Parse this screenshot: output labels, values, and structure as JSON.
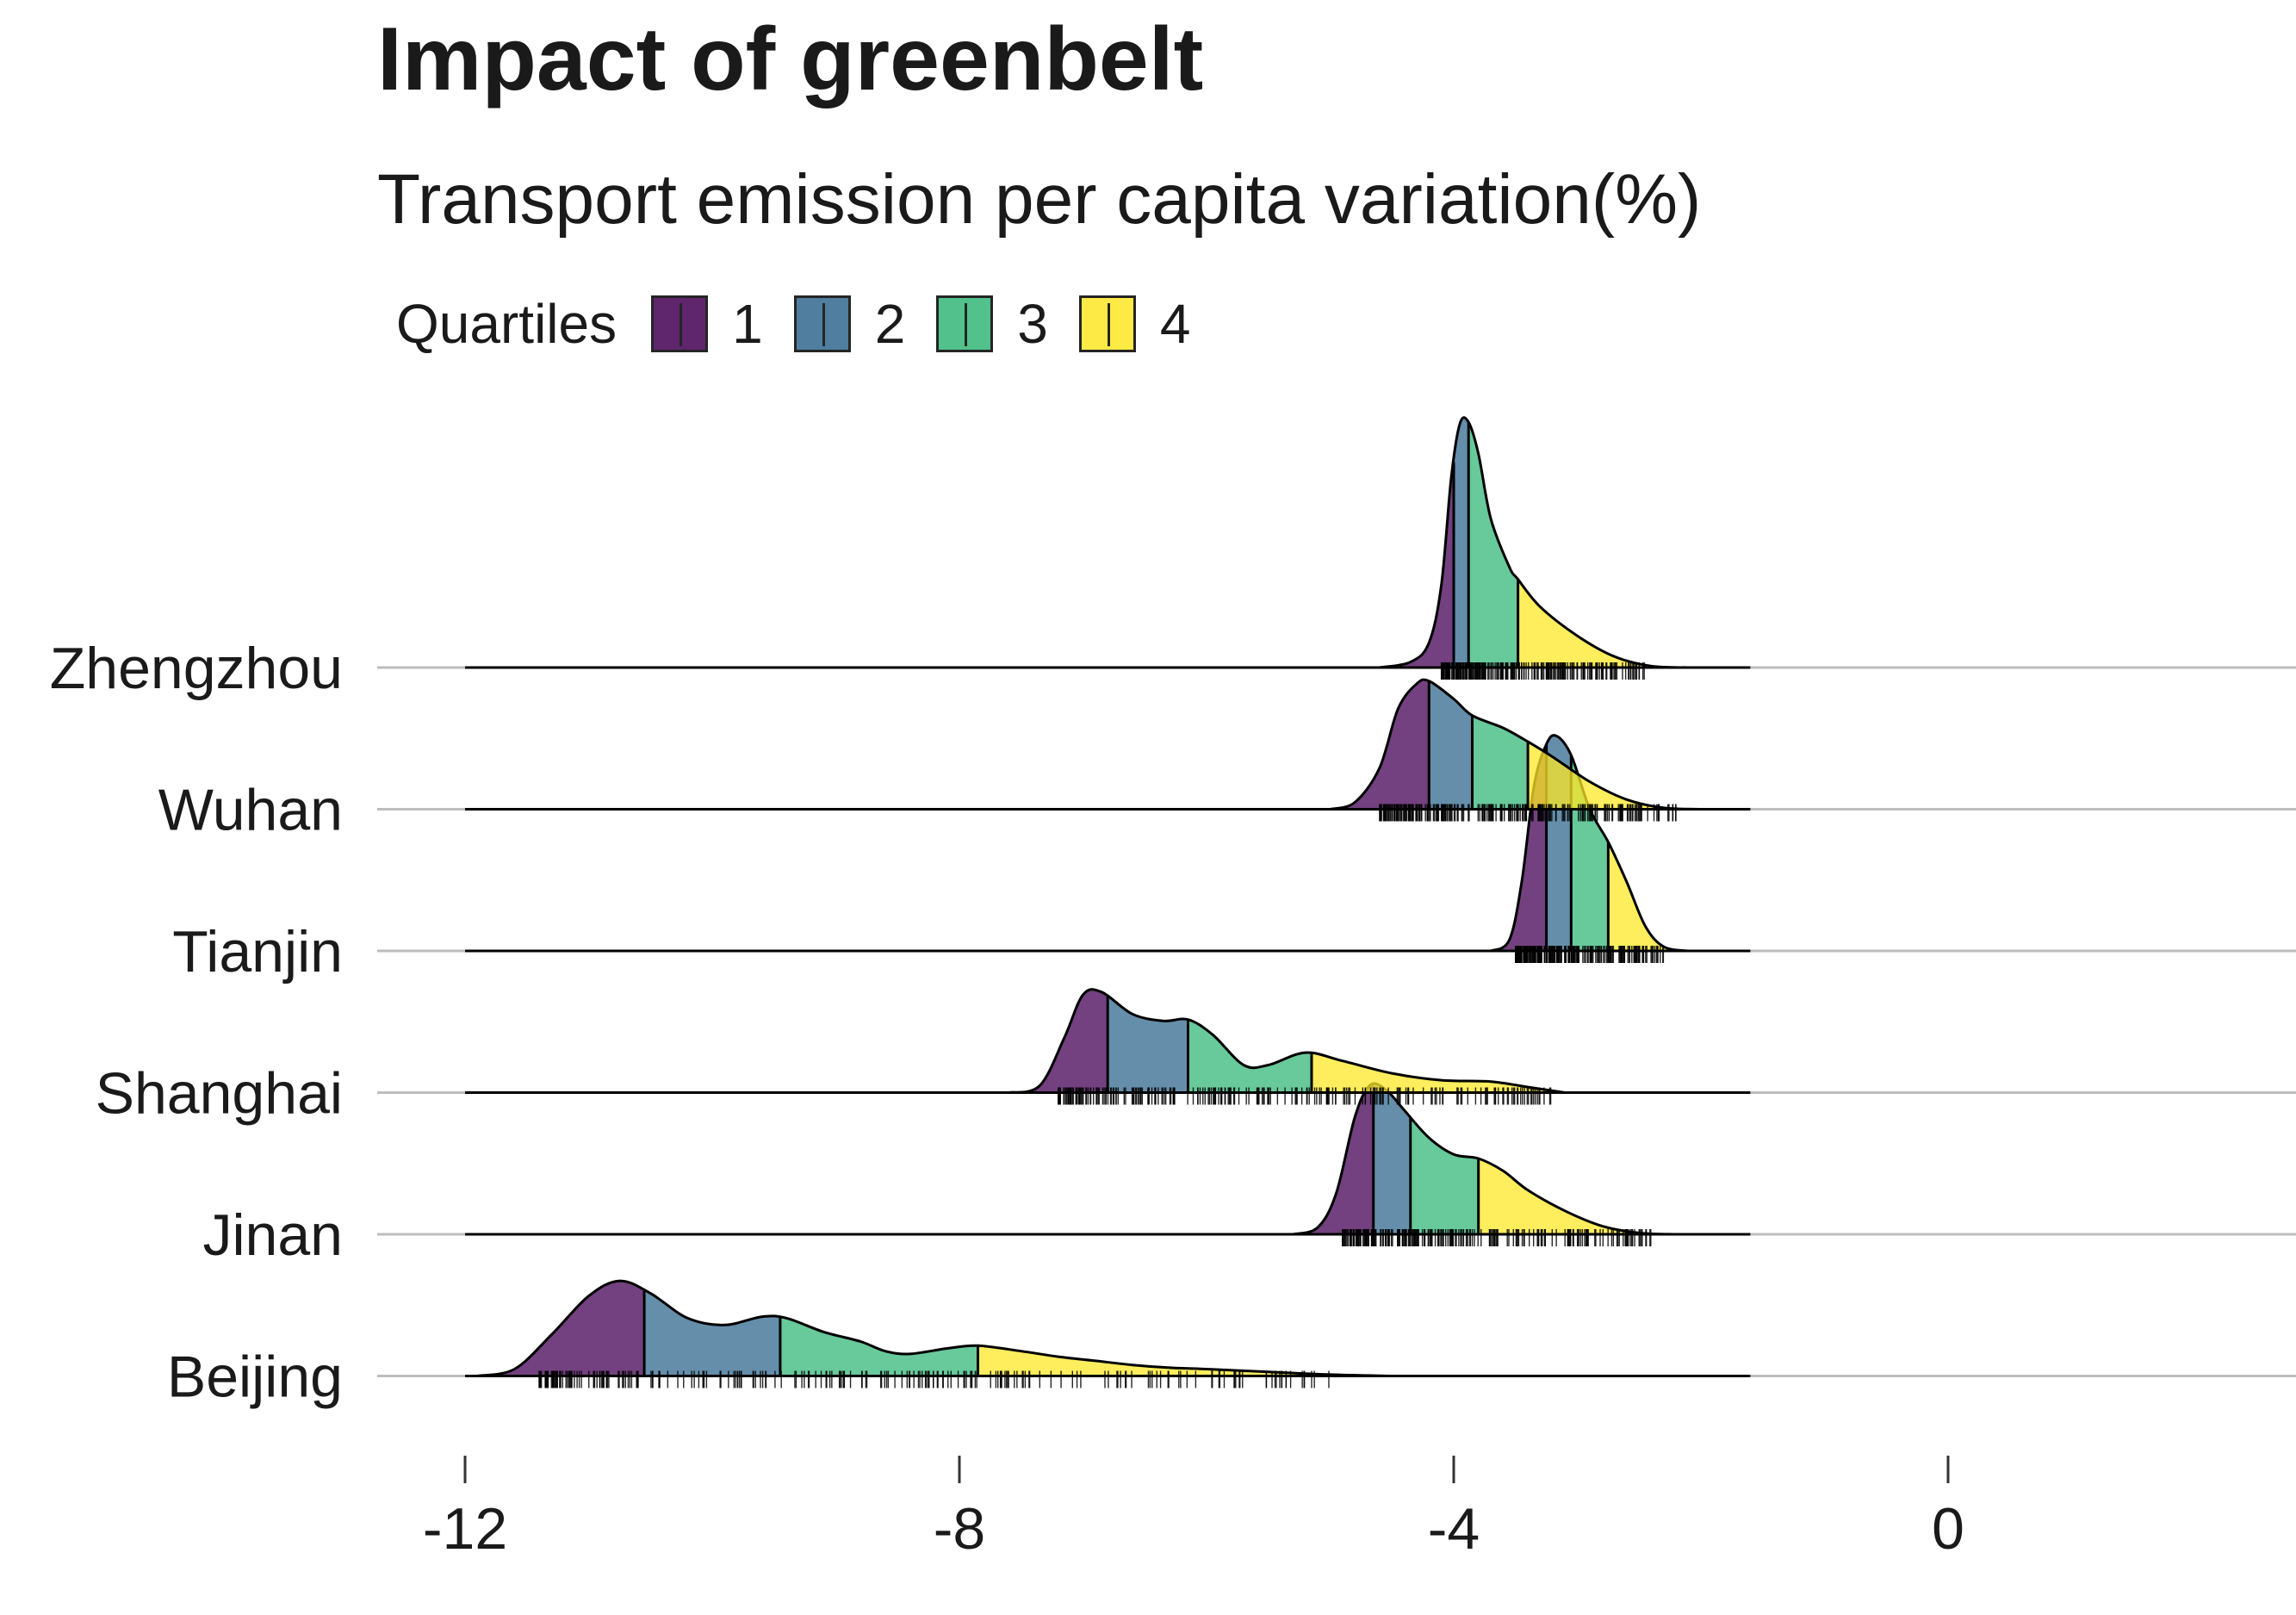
{
  "chart_data": {
    "type": "ridgeline",
    "title": "Impact of greenbelt",
    "subtitle": "Transport emission per capita variation(%)",
    "xlabel": "",
    "ylabel": "",
    "xlim": [
      -12.7,
      2.7
    ],
    "x_ticks": [
      -12,
      -8,
      -4,
      0
    ],
    "x_tick_labels": [
      "-12",
      "-8",
      "-4",
      "0"
    ],
    "legend": {
      "title": "Quartiles",
      "position": "top-left",
      "entries": [
        {
          "label": "1",
          "color": "#440154"
        },
        {
          "label": "2",
          "color": "#31688E"
        },
        {
          "label": "3",
          "color": "#35B779"
        },
        {
          "label": "4",
          "color": "#FDE725"
        }
      ]
    },
    "fill_alpha": 0.75,
    "grid": "horizontal baselines only",
    "density_support": [
      -12.0,
      -1.6
    ],
    "series": [
      {
        "name": "Beijing",
        "quartiles": [
          -10.55,
          -9.45,
          -7.85
        ],
        "range": [
          -11.4,
          -5.0
        ],
        "density": [
          [
            -11.9,
            0.0
          ],
          [
            -11.6,
            0.05
          ],
          [
            -11.3,
            0.3
          ],
          [
            -11.0,
            0.58
          ],
          [
            -10.75,
            0.69
          ],
          [
            -10.5,
            0.6
          ],
          [
            -10.2,
            0.42
          ],
          [
            -9.9,
            0.37
          ],
          [
            -9.6,
            0.43
          ],
          [
            -9.4,
            0.42
          ],
          [
            -9.1,
            0.32
          ],
          [
            -8.8,
            0.25
          ],
          [
            -8.6,
            0.18
          ],
          [
            -8.4,
            0.16
          ],
          [
            -8.1,
            0.2
          ],
          [
            -7.85,
            0.22
          ],
          [
            -7.5,
            0.18
          ],
          [
            -7.2,
            0.14
          ],
          [
            -6.9,
            0.11
          ],
          [
            -6.6,
            0.08
          ],
          [
            -6.3,
            0.06
          ],
          [
            -6.0,
            0.05
          ],
          [
            -5.5,
            0.03
          ],
          [
            -5.0,
            0.01
          ],
          [
            -4.5,
            0.0
          ]
        ]
      },
      {
        "name": "Jinan",
        "quartiles": [
          -4.65,
          -4.35,
          -3.8
        ],
        "range": [
          -4.9,
          -2.4
        ],
        "density": [
          [
            -5.3,
            0.0
          ],
          [
            -5.1,
            0.05
          ],
          [
            -4.95,
            0.3
          ],
          [
            -4.8,
            0.85
          ],
          [
            -4.68,
            1.08
          ],
          [
            -4.55,
            1.05
          ],
          [
            -4.4,
            0.9
          ],
          [
            -4.2,
            0.7
          ],
          [
            -4.0,
            0.58
          ],
          [
            -3.8,
            0.55
          ],
          [
            -3.6,
            0.46
          ],
          [
            -3.4,
            0.32
          ],
          [
            -3.1,
            0.17
          ],
          [
            -2.8,
            0.06
          ],
          [
            -2.5,
            0.01
          ],
          [
            -2.2,
            0.0
          ]
        ]
      },
      {
        "name": "Shanghai",
        "quartiles": [
          -6.8,
          -6.15,
          -5.15
        ],
        "range": [
          -7.2,
          -3.2
        ],
        "density": [
          [
            -7.6,
            0.0
          ],
          [
            -7.35,
            0.05
          ],
          [
            -7.15,
            0.4
          ],
          [
            -7.0,
            0.71
          ],
          [
            -6.85,
            0.73
          ],
          [
            -6.6,
            0.57
          ],
          [
            -6.35,
            0.52
          ],
          [
            -6.15,
            0.53
          ],
          [
            -5.95,
            0.42
          ],
          [
            -5.7,
            0.2
          ],
          [
            -5.5,
            0.2
          ],
          [
            -5.2,
            0.29
          ],
          [
            -4.9,
            0.23
          ],
          [
            -4.5,
            0.14
          ],
          [
            -4.1,
            0.09
          ],
          [
            -3.7,
            0.08
          ],
          [
            -3.4,
            0.04
          ],
          [
            -3.1,
            0.0
          ]
        ]
      },
      {
        "name": "Tianjin",
        "quartiles": [
          -3.25,
          -3.05,
          -2.75
        ],
        "range": [
          -3.5,
          -2.3
        ],
        "density": [
          [
            -3.7,
            0.0
          ],
          [
            -3.55,
            0.08
          ],
          [
            -3.45,
            0.5
          ],
          [
            -3.35,
            1.2
          ],
          [
            -3.25,
            1.5
          ],
          [
            -3.17,
            1.56
          ],
          [
            -3.05,
            1.42
          ],
          [
            -2.9,
            1.03
          ],
          [
            -2.75,
            0.79
          ],
          [
            -2.6,
            0.5
          ],
          [
            -2.45,
            0.18
          ],
          [
            -2.3,
            0.03
          ],
          [
            -2.1,
            0.0
          ]
        ]
      },
      {
        "name": "Wuhan",
        "quartiles": [
          -4.2,
          -3.85,
          -3.4
        ],
        "range": [
          -4.6,
          -2.2
        ],
        "density": [
          [
            -5.0,
            0.0
          ],
          [
            -4.8,
            0.05
          ],
          [
            -4.6,
            0.3
          ],
          [
            -4.45,
            0.73
          ],
          [
            -4.3,
            0.91
          ],
          [
            -4.2,
            0.93
          ],
          [
            -4.0,
            0.8
          ],
          [
            -3.85,
            0.68
          ],
          [
            -3.6,
            0.59
          ],
          [
            -3.4,
            0.49
          ],
          [
            -3.2,
            0.38
          ],
          [
            -2.9,
            0.2
          ],
          [
            -2.6,
            0.07
          ],
          [
            -2.3,
            0.01
          ],
          [
            -2.0,
            0.0
          ]
        ]
      },
      {
        "name": "Zhengzhou",
        "quartiles": [
          -4.0,
          -3.88,
          -3.48
        ],
        "range": [
          -4.1,
          -2.4
        ],
        "density": [
          [
            -4.6,
            0.0
          ],
          [
            -4.35,
            0.04
          ],
          [
            -4.2,
            0.18
          ],
          [
            -4.1,
            0.6
          ],
          [
            -4.02,
            1.38
          ],
          [
            -3.95,
            1.77
          ],
          [
            -3.88,
            1.78
          ],
          [
            -3.8,
            1.55
          ],
          [
            -3.7,
            1.08
          ],
          [
            -3.55,
            0.73
          ],
          [
            -3.48,
            0.64
          ],
          [
            -3.3,
            0.44
          ],
          [
            -3.0,
            0.23
          ],
          [
            -2.7,
            0.08
          ],
          [
            -2.4,
            0.01
          ],
          [
            -2.1,
            0.0
          ]
        ]
      }
    ]
  }
}
